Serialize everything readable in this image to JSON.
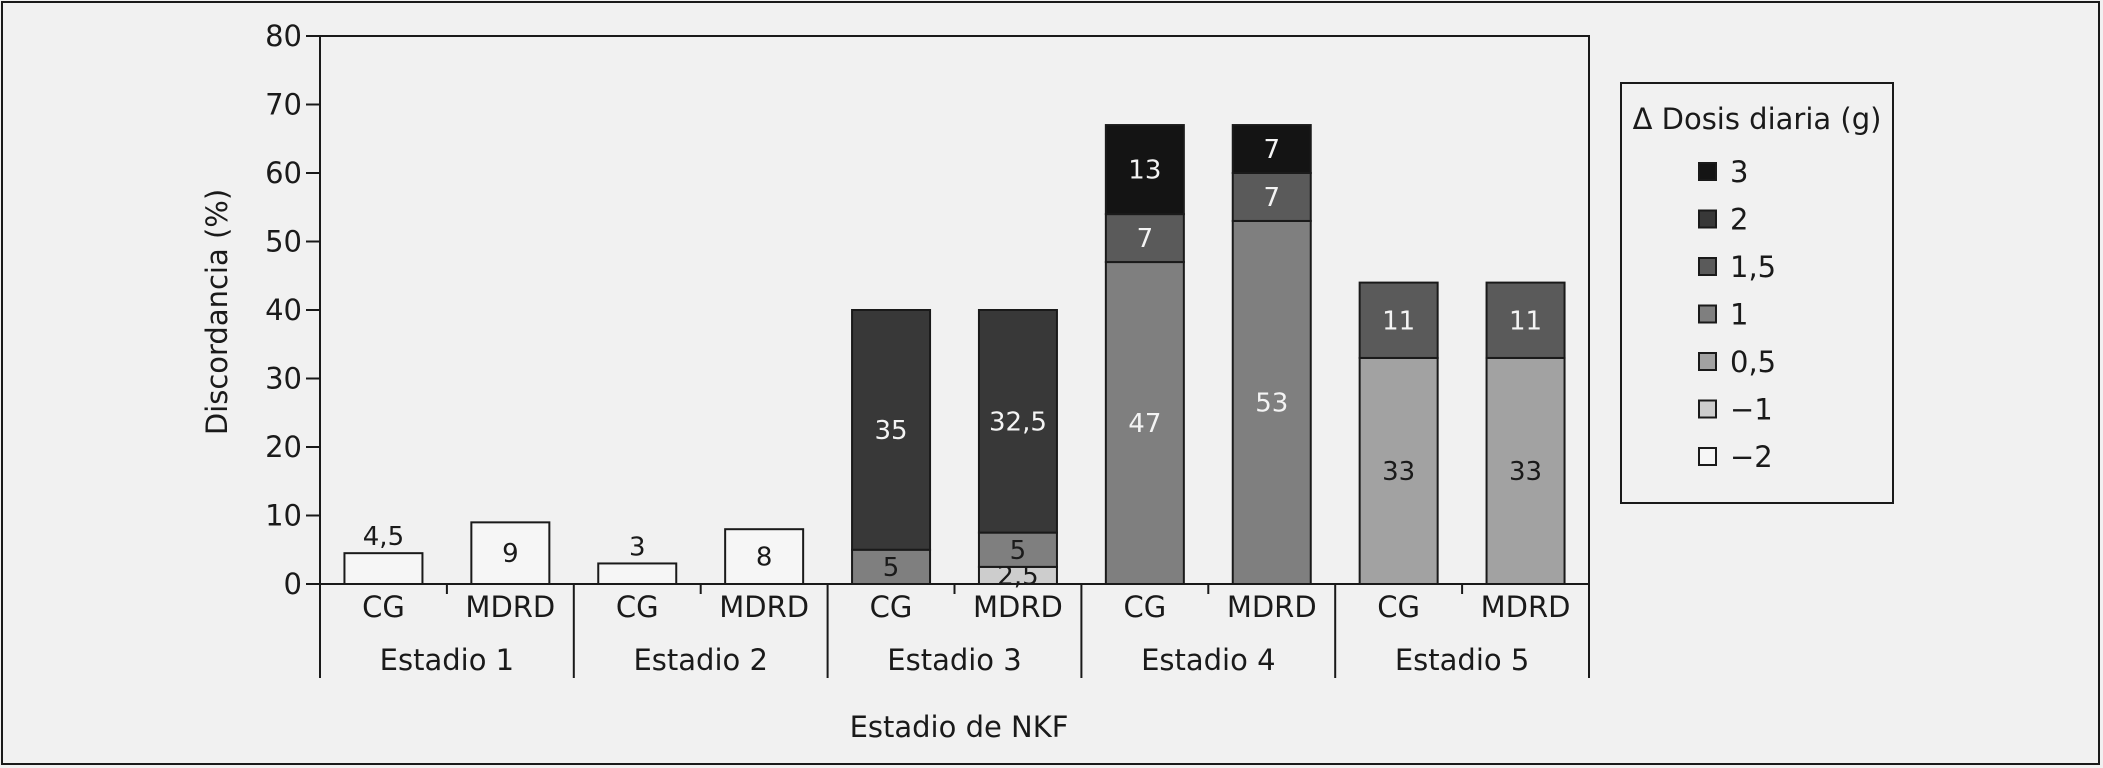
{
  "chart_data": {
    "type": "bar",
    "stacked": true,
    "title": "",
    "xlabel": "Estadio de NKF",
    "ylabel": "Discordancia (%)",
    "ylim": [
      0,
      80
    ],
    "yticks": [
      "0",
      "10",
      "20",
      "30",
      "40",
      "50",
      "60",
      "70",
      "80"
    ],
    "grid": false,
    "legend": {
      "title": "Δ Dosis diaria (g)",
      "placement": "right",
      "entries": [
        {
          "key": "3",
          "label": "3",
          "color": "#141414"
        },
        {
          "key": "2",
          "label": "2",
          "color": "#383838"
        },
        {
          "key": "1.5",
          "label": "1,5",
          "color": "#5a5a5a"
        },
        {
          "key": "1",
          "label": "1",
          "color": "#7f7f7f"
        },
        {
          "key": "0.5",
          "label": "0,5",
          "color": "#a2a2a2"
        },
        {
          "key": "-1",
          "label": "−1",
          "color": "#cdcdcd"
        },
        {
          "key": "-2",
          "label": "−2",
          "color": "#f6f6f6"
        }
      ]
    },
    "groups": [
      {
        "label": "Estadio 1",
        "bars": [
          {
            "label": "CG",
            "segments": [
              {
                "key": "-2",
                "value": 4.5,
                "label": "4,5"
              }
            ]
          },
          {
            "label": "MDRD",
            "segments": [
              {
                "key": "-2",
                "value": 9,
                "label": "9"
              }
            ]
          }
        ]
      },
      {
        "label": "Estadio 2",
        "bars": [
          {
            "label": "CG",
            "segments": [
              {
                "key": "-2",
                "value": 3,
                "label": "3"
              }
            ]
          },
          {
            "label": "MDRD",
            "segments": [
              {
                "key": "-2",
                "value": 8,
                "label": "8"
              }
            ]
          }
        ]
      },
      {
        "label": "Estadio 3",
        "bars": [
          {
            "label": "CG",
            "segments": [
              {
                "key": "1",
                "value": 5,
                "label": "5"
              },
              {
                "key": "2",
                "value": 35,
                "label": "35"
              }
            ]
          },
          {
            "label": "MDRD",
            "segments": [
              {
                "key": "-1",
                "value": 2.5,
                "label": "2,5"
              },
              {
                "key": "1",
                "value": 5,
                "label": "5"
              },
              {
                "key": "2",
                "value": 32.5,
                "label": "32,5"
              }
            ]
          }
        ]
      },
      {
        "label": "Estadio 4",
        "bars": [
          {
            "label": "CG",
            "segments": [
              {
                "key": "1",
                "value": 47,
                "label": "47"
              },
              {
                "key": "1.5",
                "value": 7,
                "label": "7"
              },
              {
                "key": "3",
                "value": 13,
                "label": "13"
              }
            ]
          },
          {
            "label": "MDRD",
            "segments": [
              {
                "key": "1",
                "value": 53,
                "label": "53"
              },
              {
                "key": "1.5",
                "value": 7,
                "label": "7"
              },
              {
                "key": "3",
                "value": 7,
                "label": "7"
              }
            ]
          }
        ]
      },
      {
        "label": "Estadio 5",
        "bars": [
          {
            "label": "CG",
            "segments": [
              {
                "key": "0.5",
                "value": 33,
                "label": "33"
              },
              {
                "key": "1.5",
                "value": 11,
                "label": "11"
              }
            ]
          },
          {
            "label": "MDRD",
            "segments": [
              {
                "key": "0.5",
                "value": 33,
                "label": "33"
              },
              {
                "key": "1.5",
                "value": 11,
                "label": "11"
              }
            ]
          }
        ]
      }
    ]
  }
}
